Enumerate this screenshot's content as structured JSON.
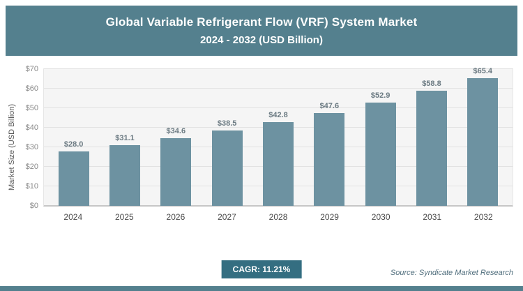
{
  "header": {
    "title_line1": "Global Variable Refrigerant Flow (VRF) System Market",
    "title_line2": "2024 - 2032 (USD Billion)"
  },
  "chart_data": {
    "type": "bar",
    "title": "Global Variable Refrigerant Flow (VRF) System Market 2024 - 2032 (USD Billion)",
    "categories": [
      "2024",
      "2025",
      "2026",
      "2027",
      "2028",
      "2029",
      "2030",
      "2031",
      "2032"
    ],
    "values": [
      28.0,
      31.1,
      34.6,
      38.5,
      42.8,
      47.6,
      52.9,
      58.8,
      65.4
    ],
    "bar_labels": [
      "$28.0",
      "$31.1",
      "$34.6",
      "$38.5",
      "$42.8",
      "$47.6",
      "$52.9",
      "$58.8",
      "$65.4"
    ],
    "xlabel": "",
    "ylabel": "Market Size (USD Billion)",
    "ylim": [
      0,
      70
    ],
    "yticks": [
      "$0",
      "$10",
      "$20",
      "$30",
      "$40",
      "$50",
      "$60",
      "$70"
    ],
    "grid": true,
    "legend": false
  },
  "footer": {
    "cagr_label": "CAGR: 11.21%",
    "source": "Source: Syndicate Market Research"
  },
  "colors": {
    "banner": "#54808E",
    "bar": "#6D92A1",
    "badge": "#346E81",
    "strip": "#54808E",
    "plot_bg": "#f5f5f5"
  }
}
